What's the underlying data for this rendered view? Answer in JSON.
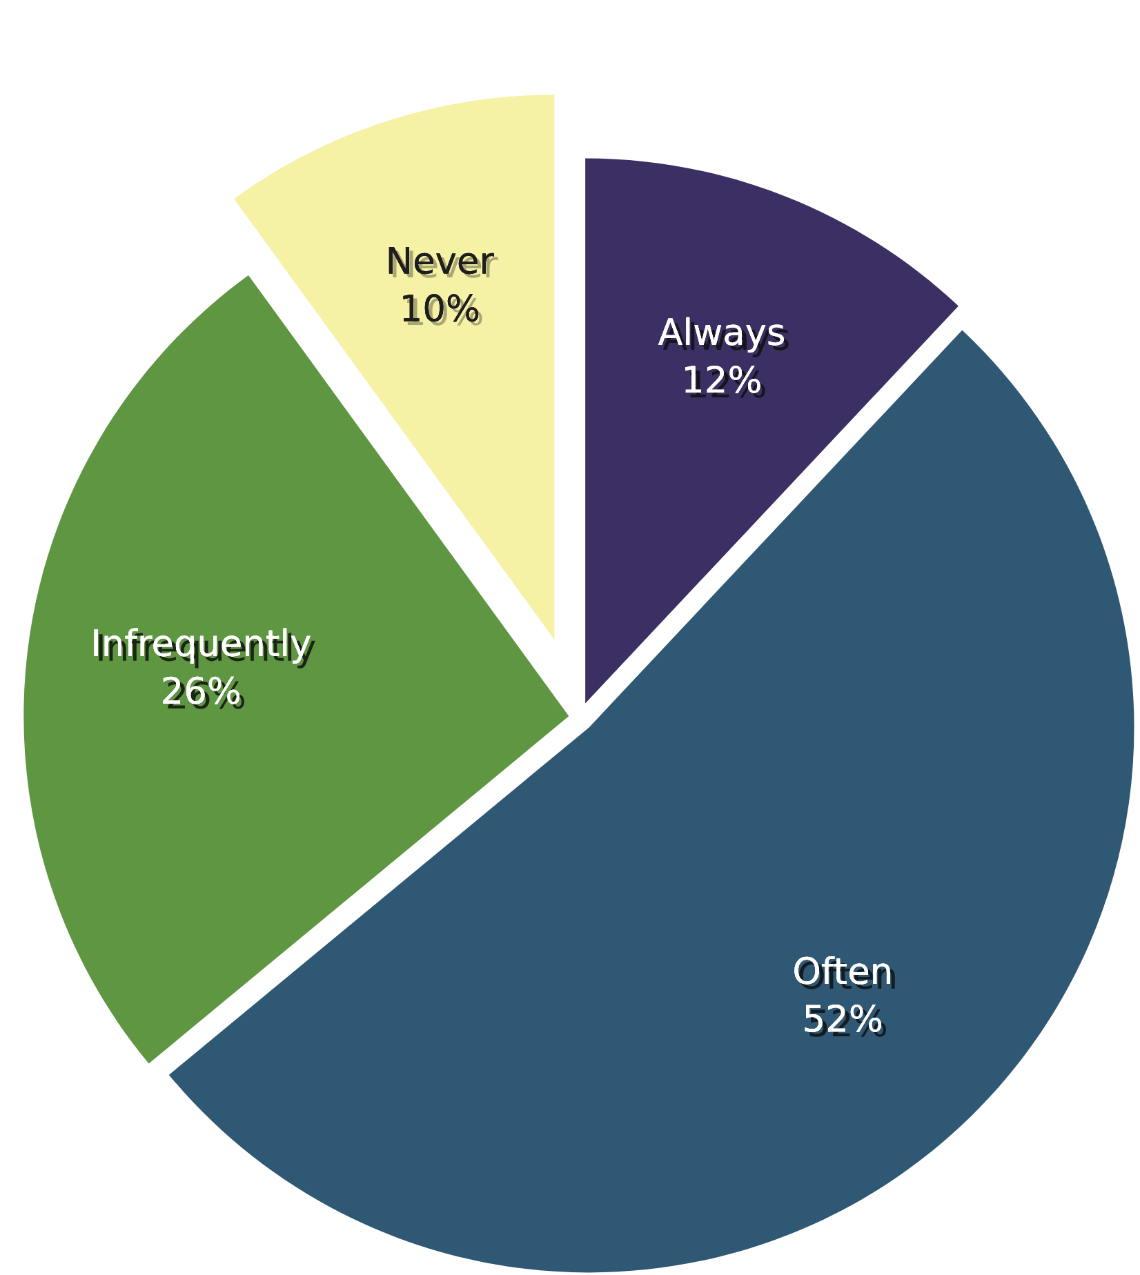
{
  "chart_data": {
    "type": "pie",
    "categories": [
      "Always",
      "Often",
      "Infrequently",
      "Never"
    ],
    "values": [
      12,
      52,
      26,
      10
    ],
    "value_labels": [
      "12%",
      "52%",
      "26%",
      "10%"
    ],
    "colors": [
      "#3b2f64",
      "#2f5874",
      "#5e9642",
      "#f5f2a6"
    ]
  }
}
